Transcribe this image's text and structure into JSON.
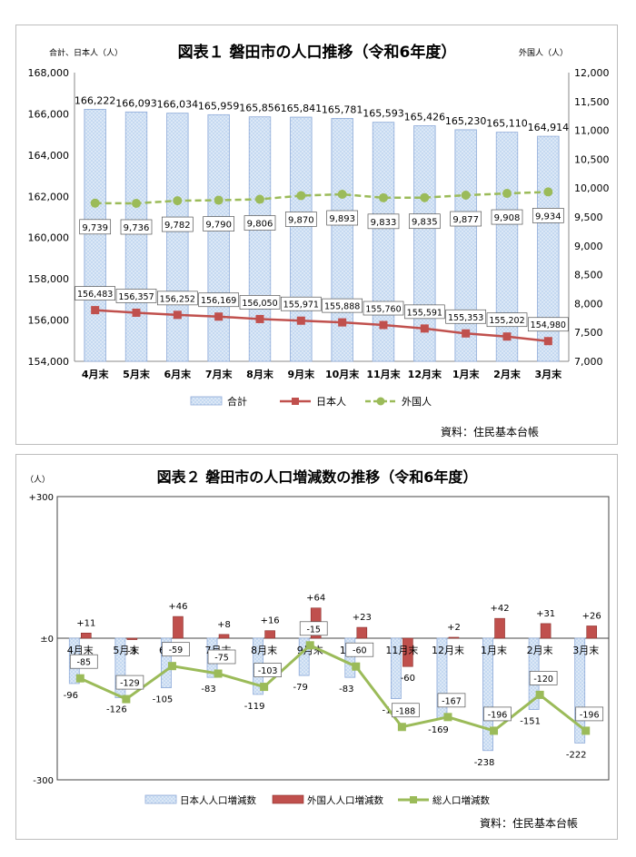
{
  "chart_data": [
    {
      "type": "bar",
      "title": "図表１ 磐田市の人口推移（令和6年度）",
      "left_axis_label": "合計、日本人（人）",
      "right_axis_label": "外国人（人）",
      "source": "資料：住民基本台帳",
      "categories": [
        "4月末",
        "5月末",
        "6月末",
        "7月末",
        "8月末",
        "9月末",
        "10月末",
        "11月末",
        "12月末",
        "1月末",
        "2月末",
        "3月末"
      ],
      "series": [
        {
          "name": "合計",
          "kind": "bar",
          "axis": "left",
          "color": "#c5d9f1",
          "values": [
            166222,
            166093,
            166034,
            165959,
            165856,
            165841,
            165781,
            165593,
            165426,
            165230,
            165110,
            164914
          ]
        },
        {
          "name": "日本人",
          "kind": "line",
          "axis": "left",
          "color": "#c0504d",
          "values": [
            156483,
            156357,
            156252,
            156169,
            156050,
            155971,
            155888,
            155760,
            155591,
            155353,
            155202,
            154980
          ]
        },
        {
          "name": "外国人",
          "kind": "line",
          "axis": "right",
          "color": "#9bbb59",
          "values": [
            9739,
            9736,
            9782,
            9790,
            9806,
            9870,
            9893,
            9833,
            9835,
            9877,
            9908,
            9934
          ]
        }
      ],
      "data_label_text": {
        "合計": [
          "166,222",
          "166,093",
          "166,034",
          "165,959",
          "165,856",
          "165,841",
          "165,781",
          "165,593",
          "165,426",
          "165,230",
          "165,110",
          "164,914"
        ],
        "日本人": [
          "156,483",
          "156,357",
          "156,252",
          "156,169",
          "156,050",
          "155,971",
          "155,888",
          "155,760",
          "155,591",
          "155,353",
          "155,202",
          "154,980"
        ],
        "外国人": [
          "9,739",
          "9,736",
          "9,782",
          "9,790",
          "9,806",
          "9,870",
          "9,893",
          "9,833",
          "9,835",
          "9,877",
          "9,908",
          "9,934"
        ]
      },
      "ylim_left": [
        154000,
        168000
      ],
      "ylim_right": [
        7000,
        12000
      ],
      "left_ticks": [
        "154,000",
        "156,000",
        "158,000",
        "160,000",
        "162,000",
        "164,000",
        "166,000",
        "168,000"
      ],
      "right_ticks": [
        "7,000",
        "7,500",
        "8,000",
        "8,500",
        "9,000",
        "9,500",
        "10,000",
        "10,500",
        "11,000",
        "11,500",
        "12,000"
      ],
      "legend_position": "bottom",
      "grid": false
    },
    {
      "type": "bar",
      "title": "図表２ 磐田市の人口増減数の推移（令和6年度）",
      "y_unit_label": "（人）",
      "source": "資料：住民基本台帳",
      "categories": [
        "4月末",
        "5月末",
        "6月末",
        "7月末",
        "8月末",
        "9月末",
        "10月末",
        "11月末",
        "12月末",
        "1月末",
        "2月末",
        "3月末"
      ],
      "series": [
        {
          "name": "日本人人口増減数",
          "kind": "bar",
          "color": "#c5d9f1",
          "values": [
            -96,
            -126,
            -105,
            -83,
            -119,
            -79,
            -83,
            -128,
            -169,
            -238,
            -151,
            -222
          ]
        },
        {
          "name": "外国人人口増減数",
          "kind": "bar",
          "color": "#c0504d",
          "values": [
            11,
            -3,
            46,
            8,
            16,
            64,
            23,
            -60,
            2,
            42,
            31,
            26
          ]
        },
        {
          "name": "総人口増減数",
          "kind": "line",
          "color": "#9bbb59",
          "values": [
            -85,
            -129,
            -59,
            -75,
            -103,
            -15,
            -60,
            -188,
            -167,
            -196,
            -120,
            -196
          ]
        }
      ],
      "data_label_text": {
        "日本人人口増減数": [
          "-96",
          "-126",
          "-105",
          "-83",
          "-119",
          "-79",
          "-83",
          "-128",
          "-169",
          "-238",
          "-151",
          "-222"
        ],
        "外国人人口増減数": [
          "+11",
          "-3",
          "+46",
          "+8",
          "+16",
          "+64",
          "+23",
          "-60",
          "+2",
          "+42",
          "+31",
          "+26"
        ],
        "総人口増減数": [
          "-85",
          "-129",
          "-59",
          "-75",
          "-103",
          "-15",
          "-60",
          "-188",
          "-167",
          "-196",
          "-120",
          "-196"
        ]
      },
      "ylim": [
        -300,
        300
      ],
      "y_ticks": [
        "-300",
        "±0",
        "+300"
      ],
      "legend_position": "bottom",
      "grid": false
    }
  ]
}
